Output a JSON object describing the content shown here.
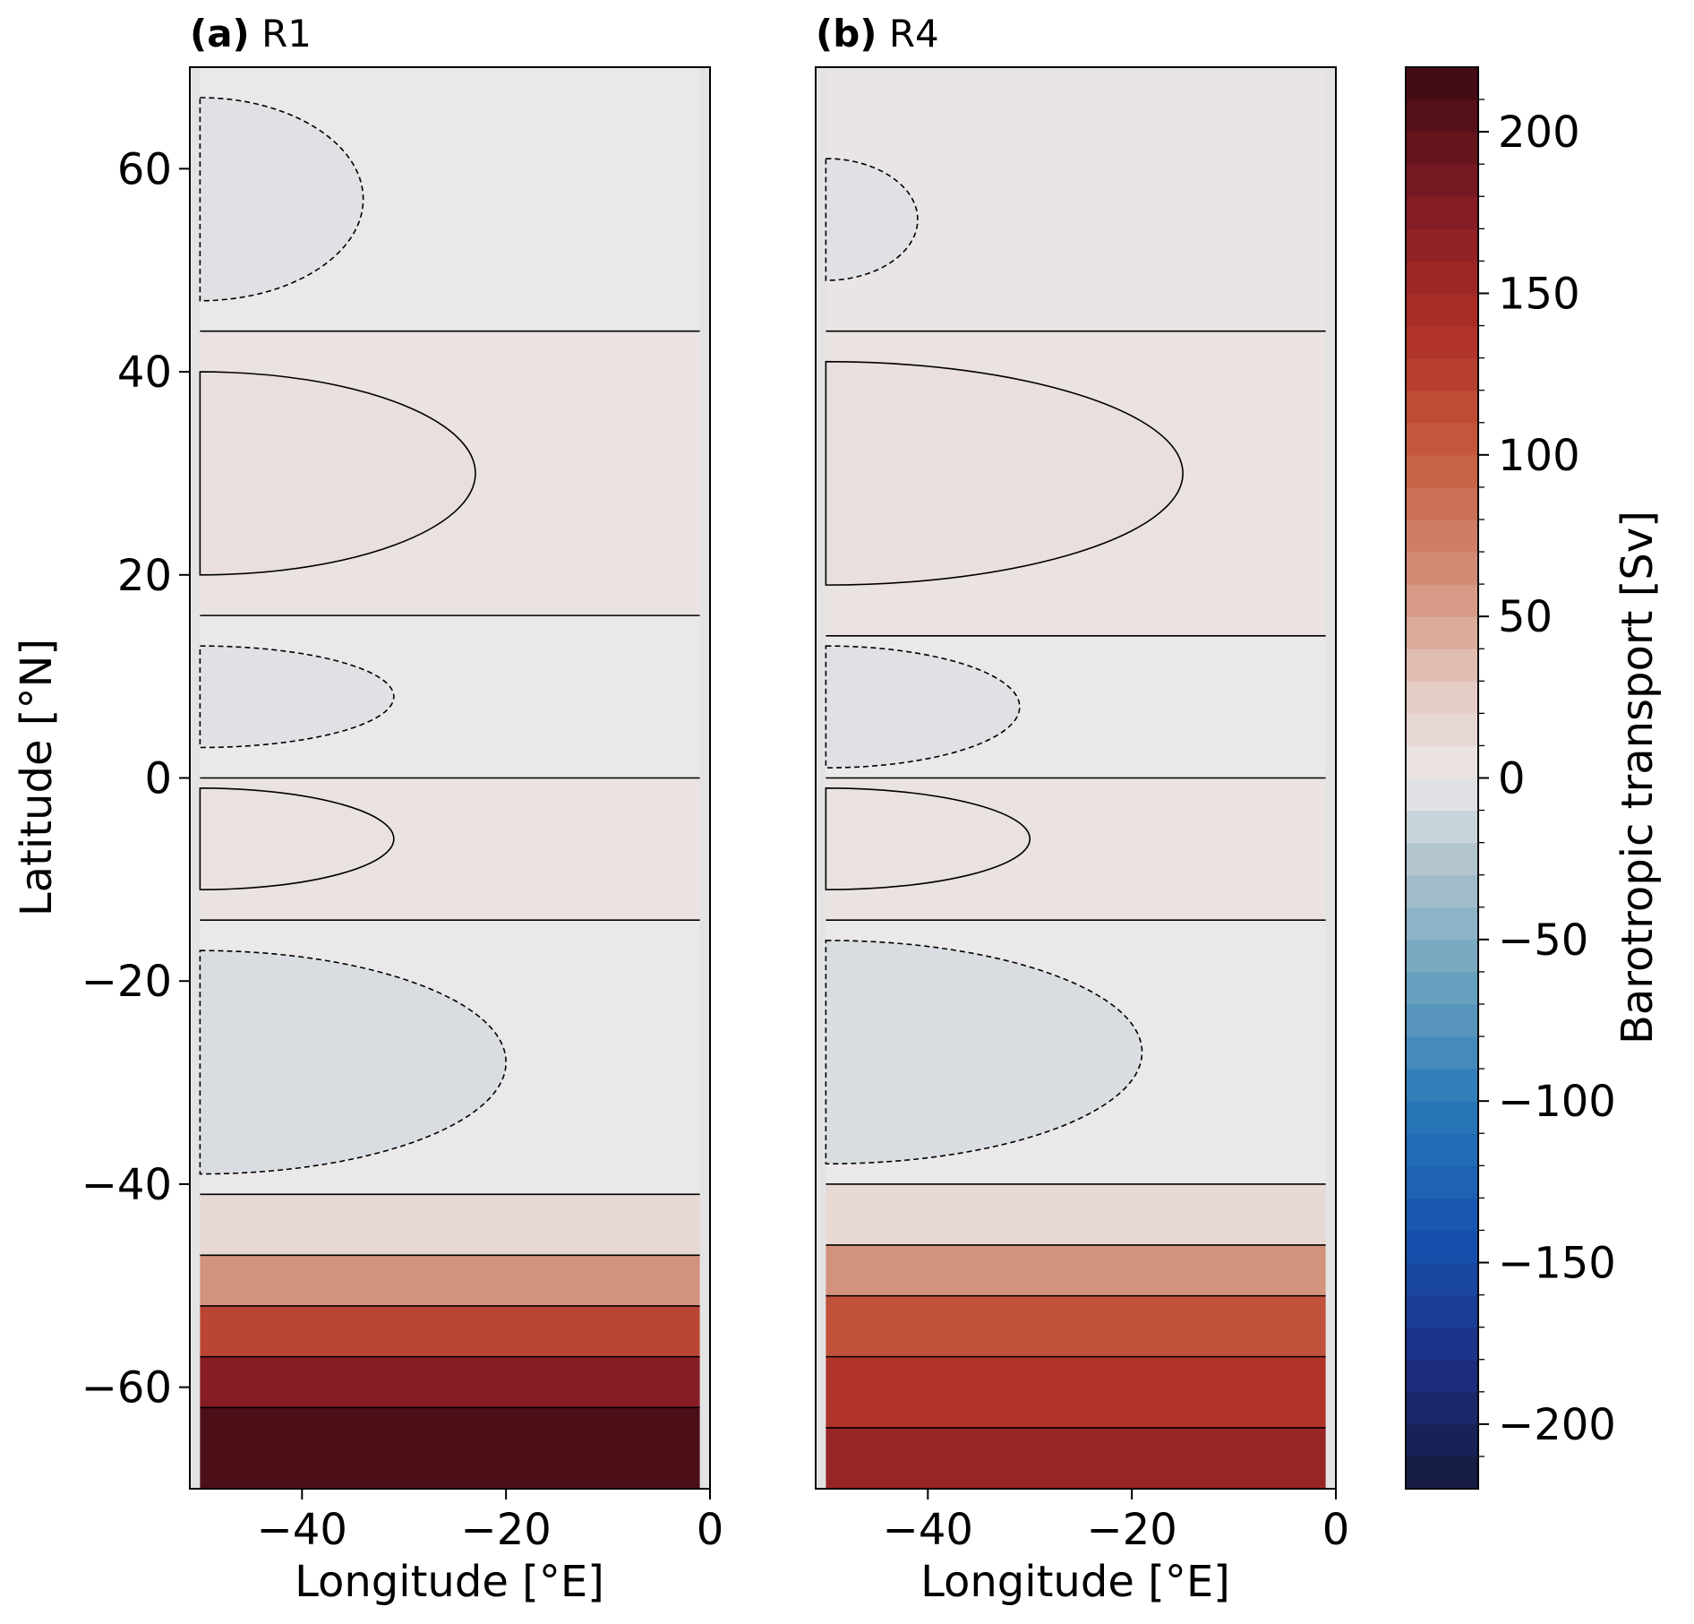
{
  "chart_data": [
    {
      "type": "heatmap",
      "panel_tag": "(a)",
      "panel_name": "R1",
      "xlabel": "Longitude [$^\\circ$E]",
      "xlabel_text": "Longitude [°E]",
      "ylabel_text": "Latitude [°N]",
      "xlim": [
        -51,
        0
      ],
      "ylim": [
        -70,
        70
      ],
      "x_ticks": [
        -40,
        -20,
        0
      ],
      "x_tick_labels": [
        "−40",
        "−20",
        "0"
      ],
      "y_ticks": [
        60,
        40,
        20,
        0,
        -20,
        -40,
        -60
      ],
      "y_tick_labels": [
        "60",
        "40",
        "20",
        "0",
        "−20",
        "−40",
        "−60"
      ],
      "bands": [
        {
          "lat_top": 70,
          "lat_bottom": 44,
          "value": 0
        },
        {
          "lat_top": 44,
          "lat_bottom": 16,
          "value": 5
        },
        {
          "lat_top": 16,
          "lat_bottom": 0,
          "value": 0
        },
        {
          "lat_top": 0,
          "lat_bottom": -14,
          "value": 5
        },
        {
          "lat_top": -14,
          "lat_bottom": -41,
          "value": 0
        },
        {
          "lat_top": -41,
          "lat_bottom": -47,
          "value": 15
        },
        {
          "lat_top": -47,
          "lat_bottom": -52,
          "value": 60
        },
        {
          "lat_top": -52,
          "lat_bottom": -57,
          "value": 120
        },
        {
          "lat_top": -57,
          "lat_bottom": -62,
          "value": 175
        },
        {
          "lat_top": -62,
          "lat_bottom": -70,
          "value": 210
        }
      ],
      "gyres": [
        {
          "lon_max": -34,
          "lat_center": 57,
          "lat_half": 10,
          "value": -5,
          "dashed": true
        },
        {
          "lon_max": -23,
          "lat_center": 30,
          "lat_half": 10,
          "value": 8,
          "dashed": false
        },
        {
          "lon_max": -31,
          "lat_center": 8,
          "lat_half": 5,
          "value": -5,
          "dashed": true
        },
        {
          "lon_max": -31,
          "lat_center": -6,
          "lat_half": 5,
          "value": 6,
          "dashed": false
        },
        {
          "lon_max": -20,
          "lat_center": -28,
          "lat_half": 11,
          "value": -8,
          "dashed": true
        }
      ]
    },
    {
      "type": "heatmap",
      "panel_tag": "(b)",
      "panel_name": "R4",
      "xlabel_text": "Longitude [°E]",
      "xlim": [
        -51,
        0
      ],
      "ylim": [
        -70,
        70
      ],
      "x_ticks": [
        -40,
        -20,
        0
      ],
      "x_tick_labels": [
        "−40",
        "−20",
        "0"
      ],
      "bands": [
        {
          "lat_top": 70,
          "lat_bottom": 44,
          "value": 3
        },
        {
          "lat_top": 44,
          "lat_bottom": 14,
          "value": 5
        },
        {
          "lat_top": 14,
          "lat_bottom": 0,
          "value": 0
        },
        {
          "lat_top": 0,
          "lat_bottom": -14,
          "value": 5
        },
        {
          "lat_top": -14,
          "lat_bottom": -40,
          "value": 0
        },
        {
          "lat_top": -40,
          "lat_bottom": -46,
          "value": 15
        },
        {
          "lat_top": -46,
          "lat_bottom": -51,
          "value": 60
        },
        {
          "lat_top": -51,
          "lat_bottom": -57,
          "value": 110
        },
        {
          "lat_top": -57,
          "lat_bottom": -64,
          "value": 135
        },
        {
          "lat_top": -64,
          "lat_bottom": -70,
          "value": 160
        }
      ],
      "gyres": [
        {
          "lon_max": -41,
          "lat_center": 55,
          "lat_half": 6,
          "value": -5,
          "dashed": true
        },
        {
          "lon_max": -15,
          "lat_center": 30,
          "lat_half": 11,
          "value": 8,
          "dashed": false
        },
        {
          "lon_max": -31,
          "lat_center": 7,
          "lat_half": 6,
          "value": -5,
          "dashed": true
        },
        {
          "lon_max": -30,
          "lat_center": -6,
          "lat_half": 5,
          "value": 6,
          "dashed": false
        },
        {
          "lon_max": -19,
          "lat_center": -27,
          "lat_half": 11,
          "value": -8,
          "dashed": true
        }
      ]
    }
  ],
  "colorbar": {
    "label": "Barotropic transport [Sv]",
    "range": [
      -220,
      220
    ],
    "ticks": [
      200,
      150,
      100,
      50,
      0,
      -50,
      -100,
      -150,
      -200
    ],
    "tick_labels": [
      "200",
      "150",
      "100",
      "50",
      "0",
      "−50",
      "−100",
      "−150",
      "−200"
    ],
    "colormap_stops": [
      {
        "v": -220,
        "color": "#161a3a"
      },
      {
        "v": -180,
        "color": "#1f2f86"
      },
      {
        "v": -140,
        "color": "#1553b0"
      },
      {
        "v": -100,
        "color": "#2a7ab8"
      },
      {
        "v": -60,
        "color": "#70a4bf"
      },
      {
        "v": -25,
        "color": "#b3c6d0"
      },
      {
        "v": 0,
        "color": "#ebe8e9"
      },
      {
        "v": 25,
        "color": "#e6cdc6"
      },
      {
        "v": 60,
        "color": "#d3927c"
      },
      {
        "v": 100,
        "color": "#c65c40"
      },
      {
        "v": 140,
        "color": "#ad2e26"
      },
      {
        "v": 180,
        "color": "#801b24"
      },
      {
        "v": 220,
        "color": "#3b0a12"
      }
    ]
  }
}
